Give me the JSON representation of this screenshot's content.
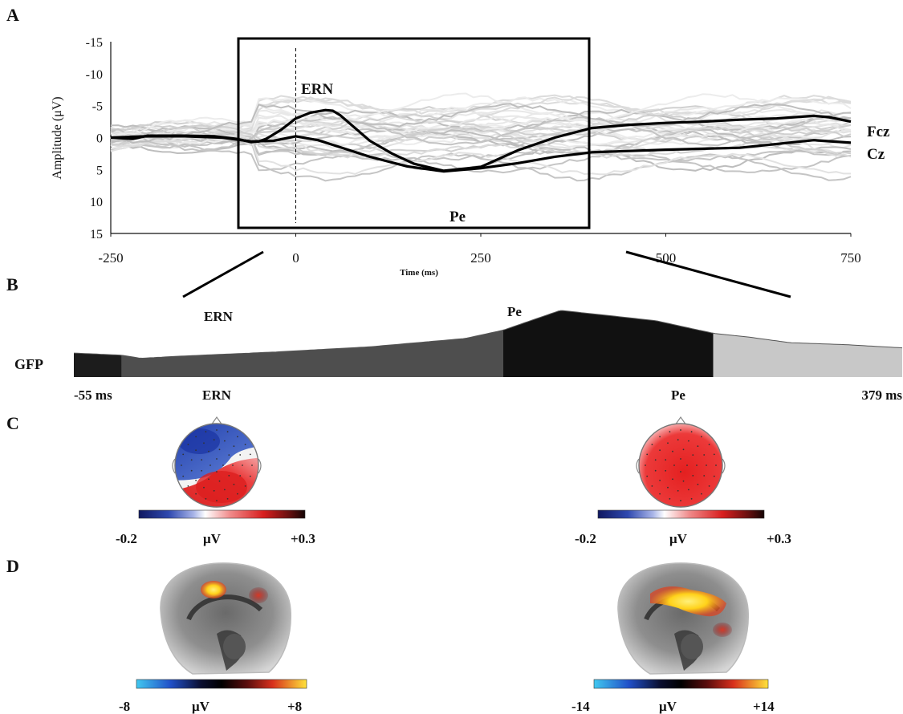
{
  "panels": {
    "A": "A",
    "B": "B",
    "C": "C",
    "D": "D"
  },
  "chart_data": [
    {
      "type": "line",
      "panel": "A",
      "xlabel": "Time (ms)",
      "ylabel": "Amplitude (μV)",
      "xlim": [
        -250,
        750
      ],
      "ylim": [
        -15,
        15
      ],
      "y_inverted": true,
      "x_ticks": [
        "-250",
        "0",
        "250",
        "500",
        "750"
      ],
      "y_ticks": [
        "-15",
        "-10",
        "-5",
        "0",
        "5",
        "10",
        "15"
      ],
      "event_marker_x": 0,
      "window": [
        -55,
        379
      ],
      "annotations": [
        "ERN",
        "Pe"
      ],
      "series": [
        {
          "name": "Fcz",
          "x": [
            -250,
            -220,
            -200,
            -150,
            -110,
            -80,
            -60,
            -50,
            -40,
            -20,
            0,
            20,
            40,
            50,
            60,
            80,
            100,
            130,
            160,
            200,
            250,
            300,
            350,
            400,
            450,
            500,
            550,
            600,
            650,
            700,
            720,
            750
          ],
          "y": [
            0,
            0.2,
            -0.3,
            -0.3,
            -0.2,
            0.2,
            0.7,
            0.6,
            0.2,
            -1.2,
            -3,
            -3.9,
            -4.3,
            -4.2,
            -3.5,
            -1.5,
            0.5,
            2.5,
            4.1,
            5.2,
            4.6,
            2,
            0,
            -1.5,
            -2,
            -2.3,
            -2.5,
            -2.8,
            -3,
            -3.4,
            -3.2,
            -2.5
          ]
        },
        {
          "name": "Cz",
          "x": [
            -250,
            -200,
            -150,
            -100,
            -60,
            -30,
            0,
            30,
            60,
            100,
            150,
            200,
            250,
            300,
            350,
            400,
            500,
            600,
            700,
            750
          ],
          "y": [
            0,
            -0.2,
            -0.2,
            0,
            0.6,
            0.5,
            -0.2,
            0.4,
            1.5,
            3,
            4.5,
            5.3,
            4.8,
            4,
            3,
            2.3,
            1.9,
            1.6,
            0.4,
            0.8
          ]
        }
      ]
    },
    {
      "type": "area",
      "panel": "B",
      "ylabel": "GFP",
      "x_range_labels": [
        "-55 ms",
        "379 ms"
      ],
      "x": [
        -55,
        -30,
        -20,
        0,
        50,
        100,
        150,
        170,
        200,
        250,
        280,
        300,
        320,
        350,
        379
      ],
      "values": [
        2.3,
        2.1,
        1.8,
        2,
        2.4,
        2.9,
        3.7,
        4.5,
        6.4,
        5.4,
        4.2,
        3.8,
        3.3,
        3.1,
        2.8
      ],
      "segments": [
        {
          "start": -55,
          "end": -30,
          "color": "#1c1c1c"
        },
        {
          "start": -30,
          "end": 170,
          "color": "#4e4e4e",
          "label": "ERN"
        },
        {
          "start": 170,
          "end": 280,
          "color": "#111111",
          "label": "Pe"
        },
        {
          "start": 280,
          "end": 379,
          "color": "#c8c8c8"
        }
      ],
      "annotations": [
        "ERN",
        "Pe"
      ]
    }
  ],
  "topomaps": [
    {
      "label": "ERN",
      "colorbar_min": "-0.2",
      "colorbar_max": "+0.3",
      "unit": "μV"
    },
    {
      "label": "Pe",
      "colorbar_min": "-0.2",
      "colorbar_max": "+0.3",
      "unit": "μV"
    }
  ],
  "sources": [
    {
      "label": "ERN",
      "colorbar_min": "-8",
      "colorbar_max": "+8",
      "unit": "μV"
    },
    {
      "label": "Pe",
      "colorbar_min": "-14",
      "colorbar_max": "+14",
      "unit": "μV"
    }
  ],
  "colors": {
    "negative": "#2f49b0",
    "positive": "#e02828",
    "hot": "#ffe23a",
    "cold": "#41c8f0"
  }
}
